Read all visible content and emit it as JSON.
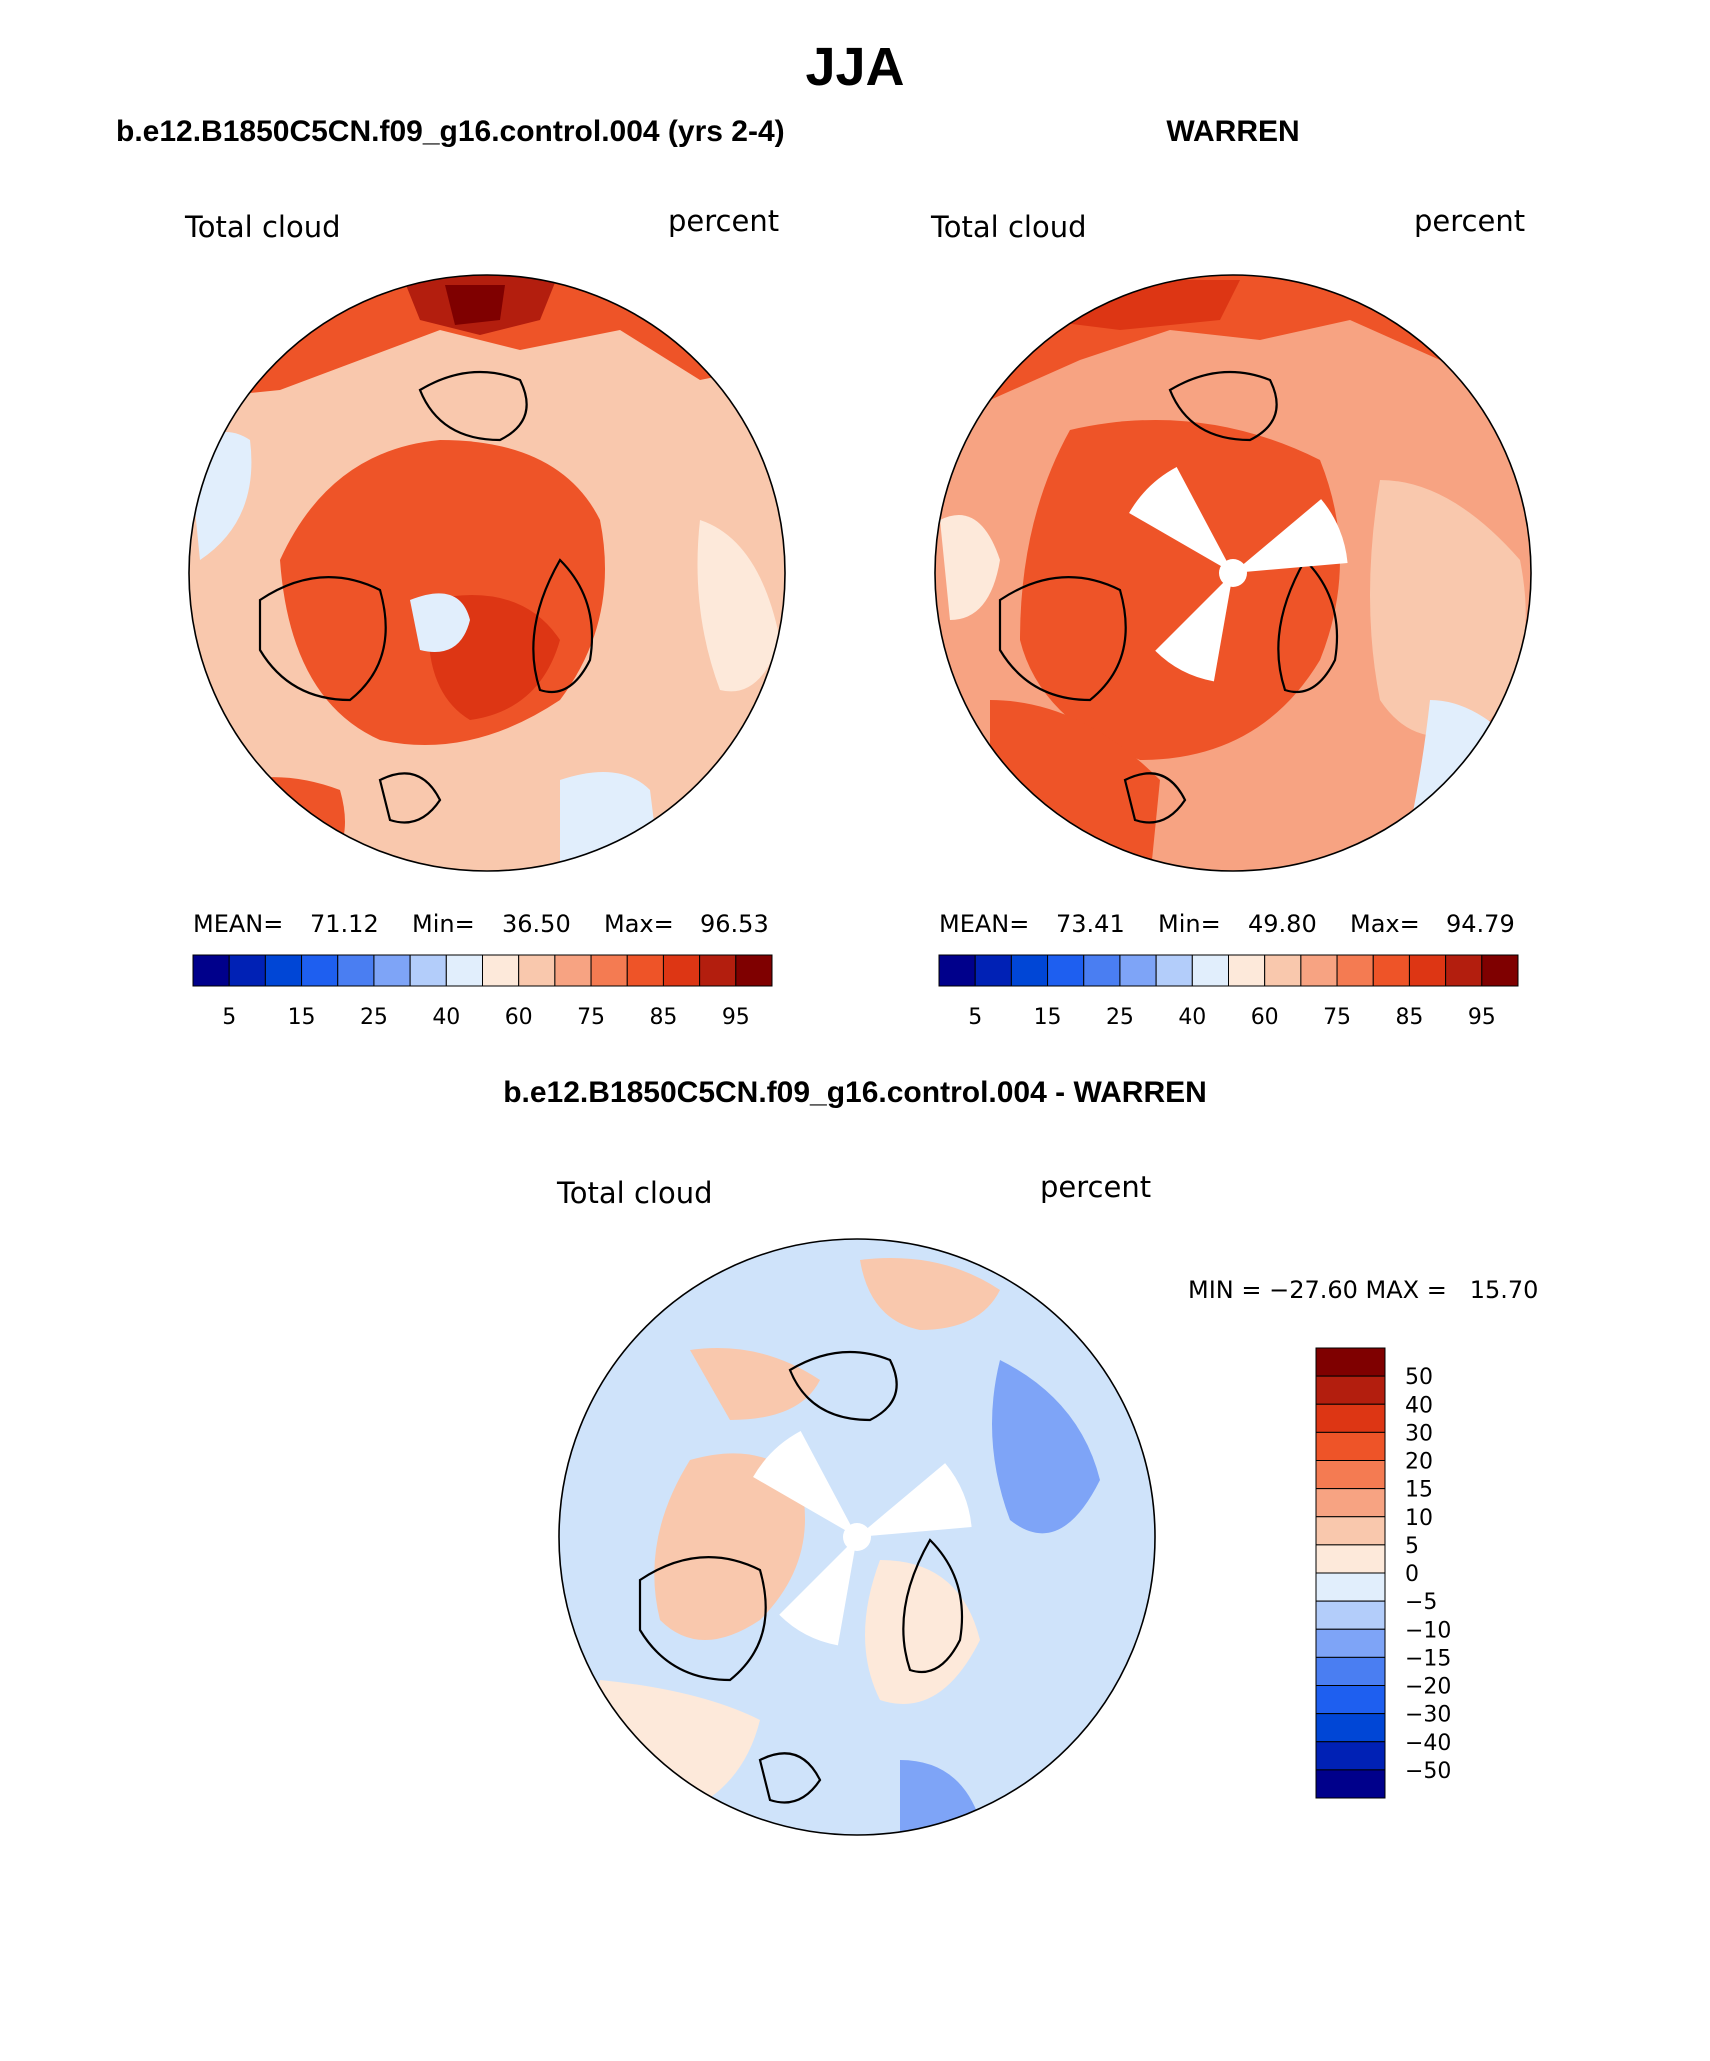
{
  "figure": {
    "title": "JJA"
  },
  "panels": [
    {
      "id": "model",
      "header": "b.e12.B1850C5CN.f09_g16.control.004 (yrs 2-4)",
      "variable": "Total cloud",
      "units": "percent",
      "stats": {
        "mean_label": "MEAN=",
        "mean": "71.12",
        "min_label": "Min=",
        "min": "36.50",
        "max_label": "Max=",
        "max": "96.53"
      },
      "colorbar_ticks": [
        "5",
        "15",
        "25",
        "40",
        "60",
        "75",
        "85",
        "95"
      ],
      "missing_sectors": false,
      "base_color": "#f7a382"
    },
    {
      "id": "obs",
      "header": "WARREN",
      "variable": "Total cloud",
      "units": "percent",
      "stats": {
        "mean_label": "MEAN=",
        "mean": "73.41",
        "min_label": "Min=",
        "min": "49.80",
        "max_label": "Max=",
        "max": "94.79"
      },
      "colorbar_ticks": [
        "5",
        "15",
        "25",
        "40",
        "60",
        "75",
        "85",
        "95"
      ],
      "missing_sectors": true,
      "base_color": "#f08a64"
    },
    {
      "id": "diff",
      "header": "b.e12.B1850C5CN.f09_g16.control.004 - WARREN",
      "variable": "Total cloud",
      "units": "percent",
      "stats_line": "MIN = −27.60 MAX =   15.70",
      "colorbar_ticks": [
        "50",
        "40",
        "30",
        "20",
        "15",
        "10",
        "5",
        "0",
        "−5",
        "−10",
        "−15",
        "−20",
        "−30",
        "−40",
        "−50"
      ],
      "missing_sectors": true,
      "base_color": "#cfe3fa"
    }
  ],
  "colors": {
    "abs_scale": [
      "#00008b",
      "#0021b5",
      "#0046d6",
      "#1e5ff0",
      "#4a7ef2",
      "#7ea4f7",
      "#b3cdfa",
      "#e1eefc",
      "#fde9da",
      "#f9c8ad",
      "#f7a382",
      "#f47b52",
      "#ee5428",
      "#dd3614",
      "#b31e0e",
      "#7f0000"
    ],
    "diff_scale": [
      "#7f0000",
      "#b31e0e",
      "#dd3614",
      "#ee5428",
      "#f47b52",
      "#f7a382",
      "#f9c8ad",
      "#fde9da",
      "#e1eefc",
      "#b3cdfa",
      "#7ea4f7",
      "#4a7ef2",
      "#1e5ff0",
      "#0046d6",
      "#0021b5",
      "#00008b"
    ]
  }
}
